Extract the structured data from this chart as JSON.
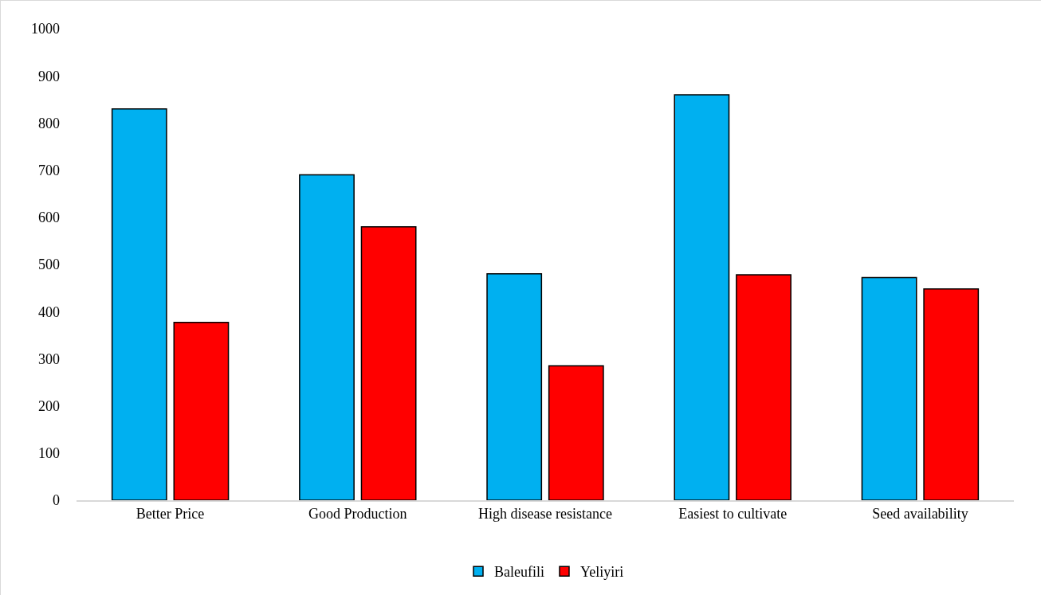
{
  "chart_data": {
    "type": "bar",
    "categories": [
      "Better Price",
      "Good Production",
      "High disease resistance",
      "Easiest to cultivate",
      "Seed availability"
    ],
    "series": [
      {
        "name": "Baleufili",
        "color": "#00b0f0",
        "values": [
          830,
          690,
          480,
          860,
          472
        ]
      },
      {
        "name": "Yeliyiri",
        "color": "#ff0000",
        "values": [
          377,
          580,
          285,
          478,
          448
        ]
      }
    ],
    "ylim": [
      0,
      1000
    ],
    "yticks": [
      0,
      100,
      200,
      300,
      400,
      500,
      600,
      700,
      800,
      900,
      1000
    ],
    "grid": false,
    "legend": "bottom"
  }
}
